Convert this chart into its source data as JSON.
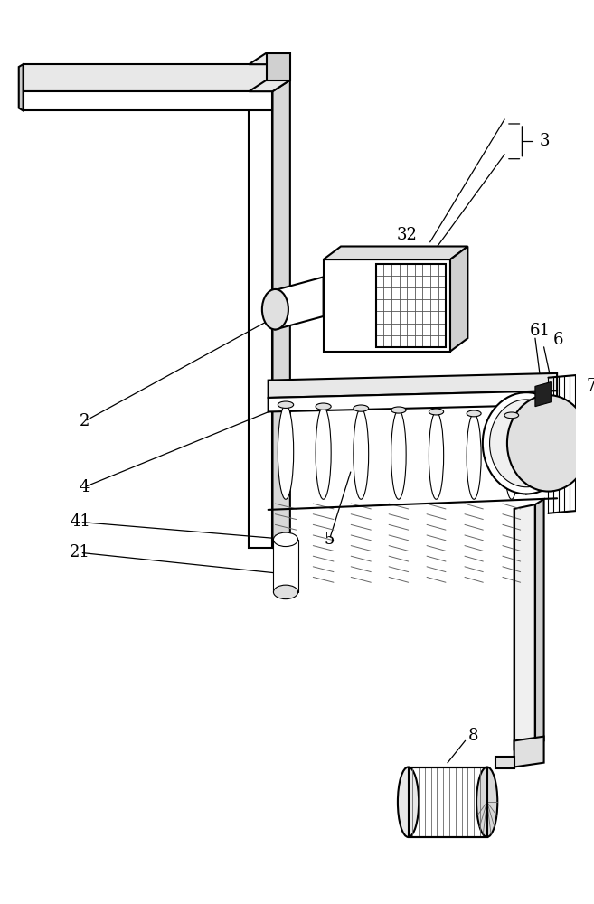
{
  "figsize": [
    6.57,
    10.0
  ],
  "dpi": 100,
  "bg_color": "#ffffff",
  "line_color": "#000000",
  "gray_light": "#d0d0d0",
  "gray_mid": "#a0a0a0",
  "gray_dark": "#606060"
}
